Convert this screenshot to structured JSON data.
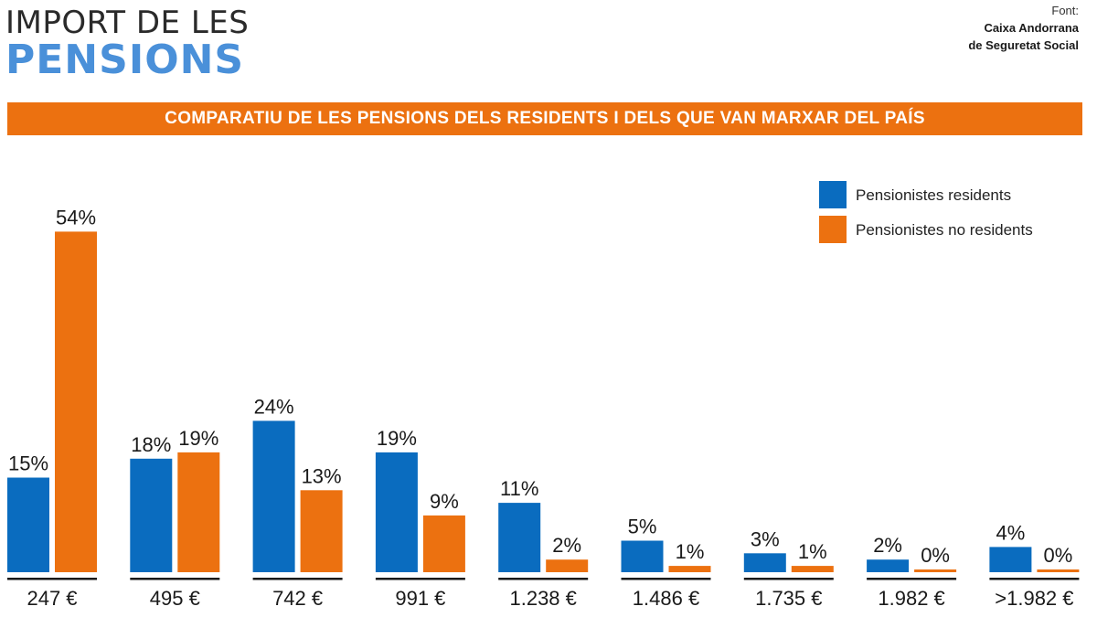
{
  "header": {
    "title_line1": "IMPORT DE LES",
    "title_line2": "PENSIONS",
    "source_label": "Font:",
    "source_line1": "Caixa Andorrana",
    "source_line2": "de Seguretat Social"
  },
  "banner": {
    "text": "COMPARATIU DE LES PENSIONS DELS RESIDENTS I DELS QUE VAN MARXAR DEL PAÍS"
  },
  "colors": {
    "residents": "#0a6cbf",
    "no_residents": "#ec7110",
    "accent_title": "#4a90d9"
  },
  "chart_data": {
    "type": "bar",
    "title": "COMPARATIU DE LES PENSIONS DELS RESIDENTS I DELS QUE VAN MARXAR DEL PAÍS",
    "xlabel": "",
    "ylabel": "",
    "ylim": [
      0,
      54
    ],
    "legend_position": "top-right",
    "grid": false,
    "categories": [
      "247 €",
      "495 €",
      "742 €",
      "991 €",
      "1.238 €",
      "1.486 €",
      "1.735 €",
      "1.982 €",
      ">1.982 €"
    ],
    "series": [
      {
        "name": "Pensionistes residents",
        "values": [
          15,
          18,
          24,
          19,
          11,
          5,
          3,
          2,
          4
        ]
      },
      {
        "name": "Pensionistes no residents",
        "values": [
          54,
          19,
          13,
          9,
          2,
          1,
          1,
          0,
          0
        ]
      }
    ],
    "value_suffix": "%"
  }
}
